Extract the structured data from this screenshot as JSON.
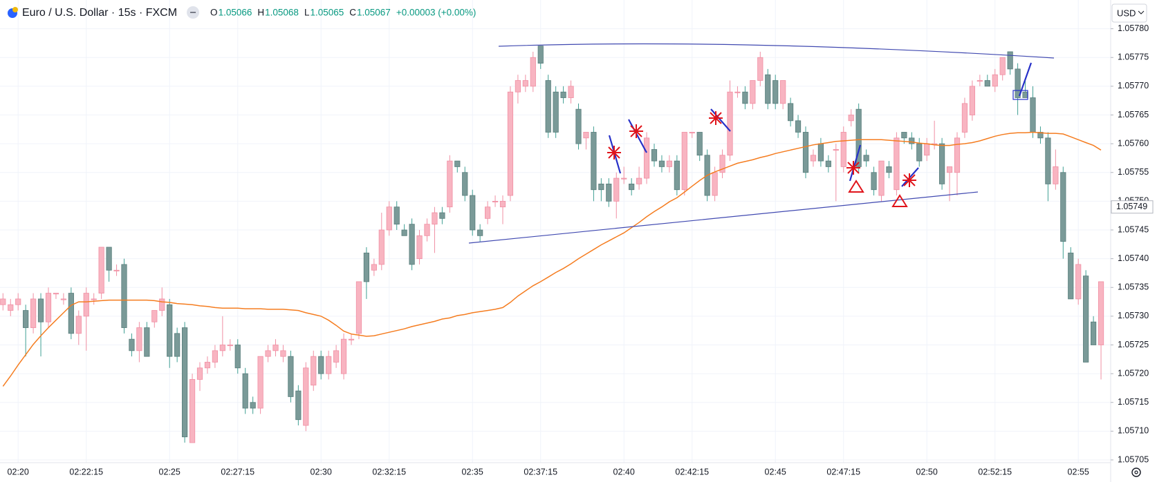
{
  "chart_data": {
    "type": "candlestick",
    "title": "Euro / U.S. Dollar · 15s · FXCM",
    "ohlc_labels": [
      "O",
      "H",
      "L",
      "C"
    ],
    "ohlc_values": [
      1.05066,
      1.05068,
      1.05065,
      1.05067
    ],
    "change": "+0.00003 (+0.00%)",
    "currency": "USD",
    "last_price": 1.05749,
    "up_color": "#f8b4c1",
    "down_color": "#7a9a98",
    "grid": true,
    "ylim": [
      1.05705,
      1.05785
    ],
    "yticks": [
      1.05705,
      {
        "value": 1.0571,
        "label": "1.05710"
      },
      1.05715,
      {
        "value": 1.0572,
        "label": "1.05720"
      },
      1.05725,
      {
        "value": 1.0573,
        "label": "1.05730"
      },
      1.05735,
      {
        "value": 1.0574,
        "label": "1.05740"
      },
      1.05745,
      {
        "value": 1.0575,
        "label": "1.05750"
      },
      1.05755,
      {
        "value": 1.0576,
        "label": "1.05760"
      },
      1.05765,
      {
        "value": 1.0577,
        "label": "1.05770"
      },
      1.05775,
      {
        "value": 1.0578,
        "label": "1.05780"
      }
    ],
    "categories": [
      null,
      null,
      "02:20",
      null,
      null,
      null,
      null,
      null,
      null,
      null,
      null,
      "02:22:15",
      null,
      null,
      null,
      null,
      null,
      null,
      null,
      null,
      null,
      null,
      "02:25",
      null,
      null,
      null,
      null,
      null,
      null,
      null,
      null,
      "02:27:15",
      null,
      null,
      null,
      null,
      null,
      null,
      null,
      null,
      null,
      null,
      "02:30",
      null,
      null,
      null,
      null,
      null,
      null,
      null,
      null,
      "02:32:15",
      null,
      null,
      null,
      null,
      null,
      null,
      null,
      null,
      null,
      null,
      "02:35",
      null,
      null,
      null,
      null,
      null,
      null,
      null,
      null,
      "02:37:15",
      null,
      null,
      null,
      null,
      null,
      null,
      null,
      null,
      null,
      null,
      "02:40",
      null,
      null,
      null,
      null,
      null,
      null,
      null,
      null,
      "02:42:15",
      null,
      null,
      null,
      null,
      null,
      null,
      null,
      null,
      null,
      null,
      "02:45",
      null,
      null,
      null,
      null,
      null,
      null,
      null,
      null,
      "02:47:15",
      null,
      null,
      null,
      null,
      null,
      null,
      null,
      null,
      null,
      null,
      "02:50",
      null,
      null,
      null,
      null,
      null,
      null,
      null,
      null,
      "02:52:15",
      null,
      null,
      null,
      null,
      null,
      null,
      null,
      null,
      null,
      null,
      "02:55",
      null,
      null,
      null
    ],
    "open": [
      1.05732,
      1.05731,
      1.05732,
      1.05731,
      1.05728,
      1.05733,
      1.05729,
      1.05734,
      1.05733,
      1.05734,
      1.05727,
      1.0573,
      1.05733,
      1.05734,
      1.05742,
      1.05738,
      1.05739,
      1.05726,
      1.05724,
      1.05728,
      1.05729,
      1.05731,
      1.05732,
      1.05727,
      1.05728,
      1.05708,
      1.05719,
      1.05721,
      1.05722,
      1.05724,
      1.05725,
      1.05725,
      1.0572,
      1.05715,
      1.05714,
      1.05723,
      1.05724,
      1.05723,
      1.05723,
      1.05717,
      1.05711,
      1.05718,
      1.05723,
      1.0572,
      1.05722,
      1.0572,
      1.05726,
      1.05727,
      1.05741,
      1.05738,
      1.05739,
      1.05745,
      1.05749,
      1.05745,
      1.05746,
      1.0574,
      1.05744,
      1.05746,
      1.05748,
      1.05749,
      1.05757,
      1.05755,
      1.05751,
      1.05745,
      1.05747,
      1.0575,
      1.05749,
      1.05751,
      1.05769,
      1.0577,
      1.0577,
      1.05777,
      1.05771,
      1.05769,
      1.05769,
      1.05768,
      1.05766,
      1.05761,
      1.05762,
      1.05753,
      1.05753,
      1.0575,
      1.05754,
      1.05753,
      1.05753,
      1.05754,
      1.05759,
      1.05757,
      1.05756,
      1.05757,
      1.05752,
      1.05762,
      1.05762,
      1.05758,
      1.05751,
      1.05755,
      1.05758,
      1.05769,
      1.05769,
      1.05767,
      1.05771,
      1.05772,
      1.05771,
      1.05767,
      1.05767,
      1.05764,
      1.05762,
      1.05757,
      1.0576,
      1.05757,
      1.05759,
      1.05756,
      1.05764,
      1.05766,
      1.05758,
      1.05755,
      1.05751,
      1.05756,
      1.05752,
      1.05762,
      1.05761,
      1.0576,
      1.05758,
      1.0576,
      1.0576,
      1.05755,
      1.05755,
      1.05762,
      1.05765,
      1.05771,
      1.05771,
      1.0577,
      1.05772,
      1.05776,
      1.05773,
      1.05769,
      1.05768,
      1.05762,
      1.05761,
      1.05753,
      1.05755,
      1.05741,
      1.05733,
      1.05737,
      1.05729,
      1.05725
    ],
    "high": [
      1.05734,
      1.05733,
      1.05734,
      1.05732,
      1.05734,
      1.05734,
      1.05735,
      1.05734,
      1.05734,
      1.05735,
      1.05731,
      1.05735,
      1.05734,
      1.05742,
      1.05742,
      1.05739,
      1.0574,
      1.05727,
      1.05729,
      1.05729,
      1.05731,
      1.05735,
      1.05733,
      1.05728,
      1.05729,
      1.0572,
      1.05722,
      1.05723,
      1.05725,
      1.0573,
      1.05726,
      1.05726,
      1.05721,
      1.05716,
      1.05723,
      1.05725,
      1.05726,
      1.05725,
      1.05724,
      1.05718,
      1.05722,
      1.05724,
      1.05724,
      1.05724,
      1.05725,
      1.05727,
      1.05727,
      1.05736,
      1.05742,
      1.0574,
      1.05748,
      1.0575,
      1.0575,
      1.05746,
      1.05747,
      1.05745,
      1.05747,
      1.05749,
      1.05749,
      1.05758,
      1.05757,
      1.05756,
      1.05752,
      1.05746,
      1.0575,
      1.05751,
      1.05751,
      1.0577,
      1.05772,
      1.05772,
      1.05776,
      1.05777,
      1.05772,
      1.0577,
      1.0577,
      1.05771,
      1.05767,
      1.05762,
      1.05763,
      1.05754,
      1.05754,
      1.05755,
      1.05756,
      1.05754,
      1.05756,
      1.05762,
      1.0576,
      1.05758,
      1.05758,
      1.05758,
      1.05762,
      1.05762,
      1.05762,
      1.05759,
      1.05756,
      1.05759,
      1.05771,
      1.0577,
      1.0577,
      1.05771,
      1.05776,
      1.05773,
      1.05772,
      1.05771,
      1.05768,
      1.05765,
      1.05763,
      1.05759,
      1.05761,
      1.05758,
      1.0576,
      1.05763,
      1.05766,
      1.05767,
      1.05759,
      1.05756,
      1.05757,
      1.05757,
      1.05762,
      1.05762,
      1.05762,
      1.05761,
      1.05761,
      1.05764,
      1.05761,
      1.05756,
      1.05762,
      1.05768,
      1.05771,
      1.05772,
      1.05772,
      1.05773,
      1.05775,
      1.05776,
      1.05774,
      1.05771,
      1.0577,
      1.05763,
      1.05762,
      1.05759,
      1.05756,
      1.05742,
      1.0574,
      1.05738,
      1.0573,
      1.05736
    ],
    "low": [
      1.05731,
      1.0573,
      1.05731,
      1.05723,
      1.05727,
      1.05723,
      1.05728,
      1.05733,
      1.05732,
      1.05726,
      1.05725,
      1.05724,
      1.05732,
      1.05733,
      1.05736,
      1.05737,
      1.05727,
      1.05723,
      1.05722,
      1.05723,
      1.05728,
      1.0573,
      1.05721,
      1.05722,
      1.05708,
      1.05708,
      1.05717,
      1.0572,
      1.05721,
      1.05723,
      1.05724,
      1.0572,
      1.05713,
      1.05713,
      1.05713,
      1.05722,
      1.05723,
      1.05722,
      1.05715,
      1.05711,
      1.0571,
      1.05717,
      1.05719,
      1.05719,
      1.05721,
      1.05719,
      1.05725,
      1.05726,
      1.05733,
      1.05737,
      1.05738,
      1.05744,
      1.05745,
      1.05744,
      1.05738,
      1.05739,
      1.05743,
      1.05741,
      1.05746,
      1.05748,
      1.05755,
      1.0575,
      1.05744,
      1.05743,
      1.05746,
      1.05749,
      1.05746,
      1.0575,
      1.05767,
      1.05769,
      1.05769,
      1.05773,
      1.05761,
      1.05761,
      1.05767,
      1.05767,
      1.05759,
      1.05759,
      1.0575,
      1.0575,
      1.05749,
      1.05747,
      1.05753,
      1.05751,
      1.05752,
      1.05753,
      1.05756,
      1.05755,
      1.05755,
      1.05751,
      1.05751,
      1.05761,
      1.05757,
      1.0575,
      1.0575,
      1.05754,
      1.05757,
      1.05768,
      1.05766,
      1.05766,
      1.0577,
      1.05766,
      1.05766,
      1.05766,
      1.05763,
      1.05761,
      1.05754,
      1.05756,
      1.05756,
      1.05755,
      1.0575,
      1.05755,
      1.05763,
      1.05755,
      1.05756,
      1.05751,
      1.0575,
      1.05754,
      1.05751,
      1.0576,
      1.05759,
      1.05756,
      1.05757,
      1.05759,
      1.05752,
      1.0575,
      1.05751,
      1.05761,
      1.05764,
      1.0577,
      1.0577,
      1.05769,
      1.05771,
      1.05772,
      1.05765,
      1.05768,
      1.05761,
      1.0576,
      1.0575,
      1.05752,
      1.0574,
      1.05733,
      1.05732,
      1.05722,
      1.05725,
      1.05719
    ],
    "close": [
      1.05733,
      1.05732,
      1.05733,
      1.05728,
      1.05733,
      1.05729,
      1.05734,
      1.05734,
      1.05733,
      1.05727,
      1.0573,
      1.05734,
      1.05733,
      1.05742,
      1.05738,
      1.05738,
      1.05728,
      1.05724,
      1.05728,
      1.05723,
      1.05731,
      1.05733,
      1.05723,
      1.05723,
      1.05709,
      1.05719,
      1.05721,
      1.05722,
      1.05724,
      1.05725,
      1.05725,
      1.05721,
      1.05714,
      1.05714,
      1.05723,
      1.05724,
      1.05725,
      1.05724,
      1.05716,
      1.05712,
      1.05721,
      1.05723,
      1.0572,
      1.05723,
      1.05724,
      1.05726,
      1.05726,
      1.05736,
      1.05736,
      1.05739,
      1.05745,
      1.05749,
      1.05746,
      1.05744,
      1.05739,
      1.05744,
      1.05746,
      1.05748,
      1.05747,
      1.05757,
      1.05756,
      1.05751,
      1.05745,
      1.05744,
      1.05749,
      1.0575,
      1.0575,
      1.05769,
      1.05771,
      1.05771,
      1.05775,
      1.05774,
      1.05762,
      1.05762,
      1.05768,
      1.0577,
      1.0576,
      1.05762,
      1.05752,
      1.05752,
      1.0575,
      1.05754,
      1.05754,
      1.05752,
      1.05754,
      1.05761,
      1.05757,
      1.05756,
      1.05757,
      1.05752,
      1.05762,
      1.05762,
      1.05758,
      1.05751,
      1.05755,
      1.05758,
      1.05769,
      1.05769,
      1.05767,
      1.05771,
      1.05775,
      1.05767,
      1.05767,
      1.05771,
      1.05764,
      1.05762,
      1.05755,
      1.05758,
      1.05757,
      1.05756,
      1.05759,
      1.05762,
      1.05765,
      1.05756,
      1.05757,
      1.05752,
      1.05757,
      1.05755,
      1.05761,
      1.05761,
      1.0576,
      1.05757,
      1.0576,
      1.0576,
      1.05753,
      1.05756,
      1.05761,
      1.05767,
      1.0577,
      1.05771,
      1.0577,
      1.05772,
      1.05775,
      1.05773,
      1.05768,
      1.05768,
      1.05762,
      1.05761,
      1.05753,
      1.05756,
      1.05743,
      1.05733,
      1.05739,
      1.05722,
      1.05725,
      1.05736
    ],
    "series": [
      {
        "color": "#f57c1f",
        "values": [
          1.057178,
          1.057196,
          1.057215,
          1.057233,
          1.057251,
          1.057266,
          1.05728,
          1.057293,
          1.057306,
          1.057319,
          1.057325,
          1.057325,
          1.057326,
          1.057327,
          1.057328,
          1.057328,
          1.057328,
          1.057328,
          1.057328,
          1.057328,
          1.057327,
          1.057325,
          1.057324,
          1.057322,
          1.057321,
          1.05732,
          1.057318,
          1.057317,
          1.057315,
          1.057314,
          1.057314,
          1.057314,
          1.057313,
          1.057313,
          1.057313,
          1.057312,
          1.057312,
          1.057312,
          1.057311,
          1.05731,
          1.057306,
          1.057303,
          1.0573,
          1.057293,
          1.057284,
          1.057274,
          1.057269,
          1.057267,
          1.057265,
          1.057266,
          1.057269,
          1.057272,
          1.057275,
          1.057278,
          1.057282,
          1.057285,
          1.057288,
          1.057291,
          1.057295,
          1.057297,
          1.057301,
          1.057303,
          1.057306,
          1.057308,
          1.05731,
          1.057312,
          1.057315,
          1.057324,
          1.057335,
          1.057344,
          1.057353,
          1.05736,
          1.057368,
          1.057376,
          1.057383,
          1.057391,
          1.0574,
          1.057408,
          1.057416,
          1.057424,
          1.057431,
          1.057438,
          1.057445,
          1.057454,
          1.057463,
          1.057473,
          1.057482,
          1.05749,
          1.057499,
          1.057506,
          1.057516,
          1.057526,
          1.057536,
          1.057545,
          1.057551,
          1.057556,
          1.057561,
          1.057566,
          1.057569,
          1.057572,
          1.057576,
          1.057579,
          1.057583,
          1.057586,
          1.057589,
          1.057592,
          1.057595,
          1.057598,
          1.0576,
          1.057602,
          1.057604,
          1.057605,
          1.057606,
          1.057607,
          1.057607,
          1.057607,
          1.057607,
          1.057606,
          1.057605,
          1.057604,
          1.057603,
          1.057601,
          1.0576,
          1.057598,
          1.057597,
          1.057597,
          1.057599,
          1.0576,
          1.057602,
          1.057605,
          1.057609,
          1.057613,
          1.057616,
          1.057618,
          1.057619,
          1.057619,
          1.05762,
          1.057619,
          1.057618,
          1.057618,
          1.057617,
          1.057612,
          1.057607,
          1.057602,
          1.057597,
          1.057589
        ]
      }
    ]
  }
}
